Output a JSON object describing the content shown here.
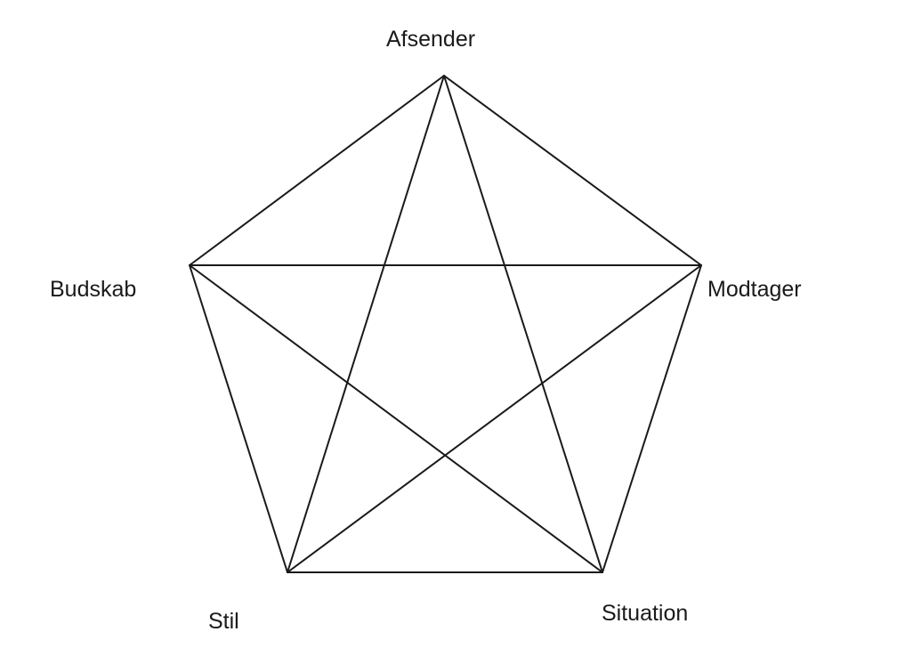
{
  "diagram": {
    "type": "pentagram-communication-model",
    "nodes": [
      {
        "id": "afsender",
        "label": "Afsender"
      },
      {
        "id": "modtager",
        "label": "Modtager"
      },
      {
        "id": "situation",
        "label": "Situation"
      },
      {
        "id": "stil",
        "label": "Stil"
      },
      {
        "id": "budskab",
        "label": "Budskab"
      }
    ],
    "edges": [
      [
        "afsender",
        "modtager"
      ],
      [
        "modtager",
        "situation"
      ],
      [
        "situation",
        "stil"
      ],
      [
        "stil",
        "budskab"
      ],
      [
        "budskab",
        "afsender"
      ],
      [
        "afsender",
        "situation"
      ],
      [
        "afsender",
        "stil"
      ],
      [
        "budskab",
        "modtager"
      ],
      [
        "budskab",
        "situation"
      ],
      [
        "modtager",
        "stil"
      ]
    ],
    "line_color": "#1a1a1a"
  }
}
